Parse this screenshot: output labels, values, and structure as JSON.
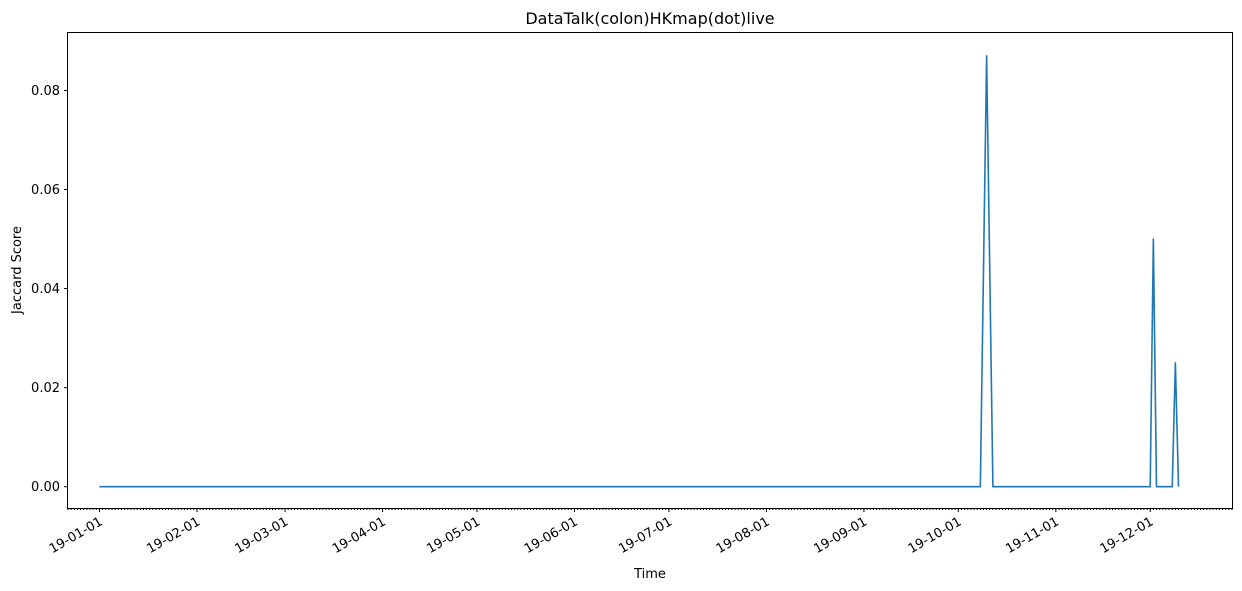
{
  "chart_data": {
    "type": "line",
    "title": "DataTalk(colon)HKmap(dot)live",
    "xlabel": "Time",
    "ylabel": "Jaccard Score",
    "x_type": "date",
    "xlim": [
      "2018-12-22",
      "2019-12-27"
    ],
    "ylim": [
      -0.0043,
      0.0916
    ],
    "grid": false,
    "x_ticks": [
      {
        "date": "2019-01-01",
        "label": "19-01-01"
      },
      {
        "date": "2019-02-01",
        "label": "19-02-01"
      },
      {
        "date": "2019-03-01",
        "label": "19-03-01"
      },
      {
        "date": "2019-04-01",
        "label": "19-04-01"
      },
      {
        "date": "2019-05-01",
        "label": "19-05-01"
      },
      {
        "date": "2019-06-01",
        "label": "19-06-01"
      },
      {
        "date": "2019-07-01",
        "label": "19-07-01"
      },
      {
        "date": "2019-08-01",
        "label": "19-08-01"
      },
      {
        "date": "2019-09-01",
        "label": "19-09-01"
      },
      {
        "date": "2019-10-01",
        "label": "19-10-01"
      },
      {
        "date": "2019-11-01",
        "label": "19-11-01"
      },
      {
        "date": "2019-12-01",
        "label": "19-12-01"
      }
    ],
    "y_ticks": [
      {
        "value": 0.0,
        "label": "0.00"
      },
      {
        "value": 0.02,
        "label": "0.02"
      },
      {
        "value": 0.04,
        "label": "0.04"
      },
      {
        "value": 0.06,
        "label": "0.06"
      },
      {
        "value": 0.08,
        "label": "0.08"
      }
    ],
    "series": [
      {
        "color": "#1f77b4",
        "points": [
          {
            "x": "2019-01-01",
            "y": 0.0
          },
          {
            "x": "2019-10-08",
            "y": 0.0
          },
          {
            "x": "2019-10-10",
            "y": 0.087
          },
          {
            "x": "2019-10-12",
            "y": 0.0
          },
          {
            "x": "2019-12-01",
            "y": 0.0
          },
          {
            "x": "2019-12-02",
            "y": 0.05
          },
          {
            "x": "2019-12-03",
            "y": 0.0
          },
          {
            "x": "2019-12-08",
            "y": 0.0
          },
          {
            "x": "2019-12-09",
            "y": 0.025
          },
          {
            "x": "2019-12-10",
            "y": 0.0
          }
        ]
      }
    ]
  }
}
